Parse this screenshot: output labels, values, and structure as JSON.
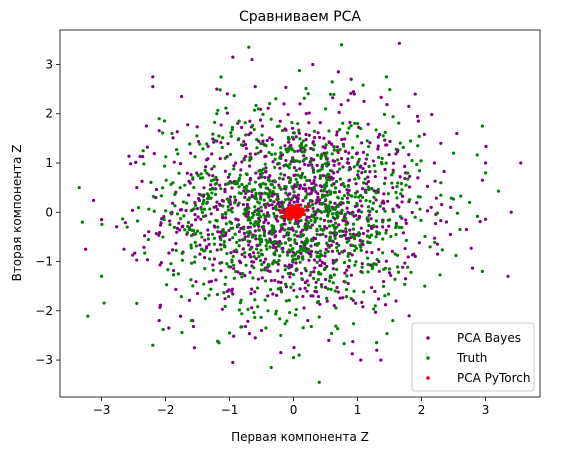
{
  "chart_data": {
    "type": "scatter",
    "title": "Сравниваем PCA",
    "xlabel": "Первая компонента Z",
    "ylabel": "Вторая компонента Z",
    "xlim": [
      -3.65,
      3.85
    ],
    "ylim": [
      -3.75,
      3.7
    ],
    "xticks": [
      -3,
      -2,
      -1,
      0,
      1,
      2,
      3
    ],
    "yticks": [
      -3,
      -2,
      -1,
      0,
      1,
      2,
      3
    ],
    "grid": false,
    "legend_position": "lower-right",
    "series": [
      {
        "name": "PCA Bayes",
        "color": "#800080",
        "cloud": {
          "count": 1000,
          "mean": [
            0,
            0
          ],
          "std": [
            1,
            1
          ]
        },
        "points": [
          [
            3.55,
            1.0
          ],
          [
            3.4,
            0.0
          ],
          [
            3.35,
            -1.3
          ],
          [
            3.0,
            1.0
          ],
          [
            2.95,
            0.65
          ],
          [
            2.55,
            1.6
          ],
          [
            2.3,
            1.4
          ],
          [
            2.2,
            1.0
          ],
          [
            2.15,
            0.1
          ],
          [
            1.95,
            1.85
          ],
          [
            1.9,
            2.4
          ],
          [
            1.8,
            2.15
          ],
          [
            1.75,
            -1.35
          ],
          [
            1.6,
            -1.8
          ],
          [
            1.3,
            -2.8
          ],
          [
            1.1,
            2.25
          ],
          [
            0.95,
            2.4
          ],
          [
            0.9,
            2.7
          ],
          [
            0.7,
            2.85
          ],
          [
            0.3,
            3.0
          ],
          [
            0.1,
            2.2
          ],
          [
            -0.15,
            2.2
          ],
          [
            -0.6,
            2.55
          ],
          [
            -0.65,
            3.1
          ],
          [
            -0.95,
            3.15
          ],
          [
            -1.2,
            2.5
          ],
          [
            -1.75,
            2.35
          ],
          [
            -2.2,
            2.55
          ],
          [
            -2.2,
            2.75
          ],
          [
            -2.3,
            1.75
          ],
          [
            -2.1,
            -2.2
          ],
          [
            -1.95,
            -2.35
          ],
          [
            -1.55,
            -2.75
          ],
          [
            -0.95,
            -3.05
          ],
          [
            -0.6,
            -2.55
          ],
          [
            -0.5,
            -2.4
          ],
          [
            -0.2,
            -2.85
          ],
          [
            0.55,
            -2.6
          ],
          [
            1.05,
            -3.0
          ],
          [
            -1.5,
            -1.65
          ],
          [
            -3.25,
            -0.75
          ],
          [
            -3.0,
            -0.15
          ],
          [
            -2.65,
            -0.75
          ],
          [
            -2.45,
            0.5
          ],
          [
            -1.9,
            0.0
          ],
          [
            1.55,
            0.5
          ],
          [
            1.75,
            0.8
          ],
          [
            2.45,
            -0.45
          ],
          [
            2.7,
            -0.35
          ],
          [
            2.25,
            -0.85
          ]
        ]
      },
      {
        "name": "Truth",
        "color": "#008000",
        "cloud": {
          "count": 1000,
          "mean": [
            0,
            0
          ],
          "std": [
            1,
            1
          ]
        },
        "points": [
          [
            -3.35,
            0.5
          ],
          [
            -3.3,
            -0.2
          ],
          [
            -3.0,
            -1.3
          ],
          [
            -2.35,
            1.25
          ],
          [
            -2.2,
            -2.7
          ],
          [
            -2.1,
            1.9
          ],
          [
            -1.9,
            1.6
          ],
          [
            -1.8,
            -1.25
          ],
          [
            -1.2,
            2.0
          ],
          [
            -0.85,
            1.85
          ],
          [
            -0.7,
            3.35
          ],
          [
            -0.55,
            2.1
          ],
          [
            -0.35,
            -3.15
          ],
          [
            -0.2,
            -2.5
          ],
          [
            0.0,
            -2.95
          ],
          [
            0.4,
            -3.45
          ],
          [
            0.75,
            3.4
          ],
          [
            0.9,
            -1.75
          ],
          [
            1.0,
            1.8
          ],
          [
            1.15,
            1.45
          ],
          [
            1.4,
            1.55
          ],
          [
            1.45,
            2.75
          ],
          [
            1.6,
            -0.45
          ],
          [
            1.9,
            -0.1
          ],
          [
            2.05,
            -1.5
          ],
          [
            2.3,
            0.6
          ],
          [
            2.6,
            -0.35
          ],
          [
            2.75,
            0.2
          ],
          [
            2.95,
            -1.2
          ],
          [
            2.95,
            1.75
          ],
          [
            3.0,
            0.8
          ],
          [
            2.5,
            1.2
          ],
          [
            -2.6,
            -0.3
          ],
          [
            -1.7,
            0.55
          ],
          [
            -2.45,
            -1.85
          ],
          [
            1.85,
            1.05
          ],
          [
            -1.0,
            -2.45
          ],
          [
            0.5,
            2.1
          ],
          [
            -0.4,
            -2.0
          ],
          [
            1.55,
            -2.2
          ]
        ]
      },
      {
        "name": "PCA PyTorch",
        "color": "#ff0000",
        "cloud": {
          "count": 400,
          "mean": [
            0,
            0
          ],
          "std": [
            0.06,
            0.05
          ]
        },
        "points": []
      }
    ]
  }
}
